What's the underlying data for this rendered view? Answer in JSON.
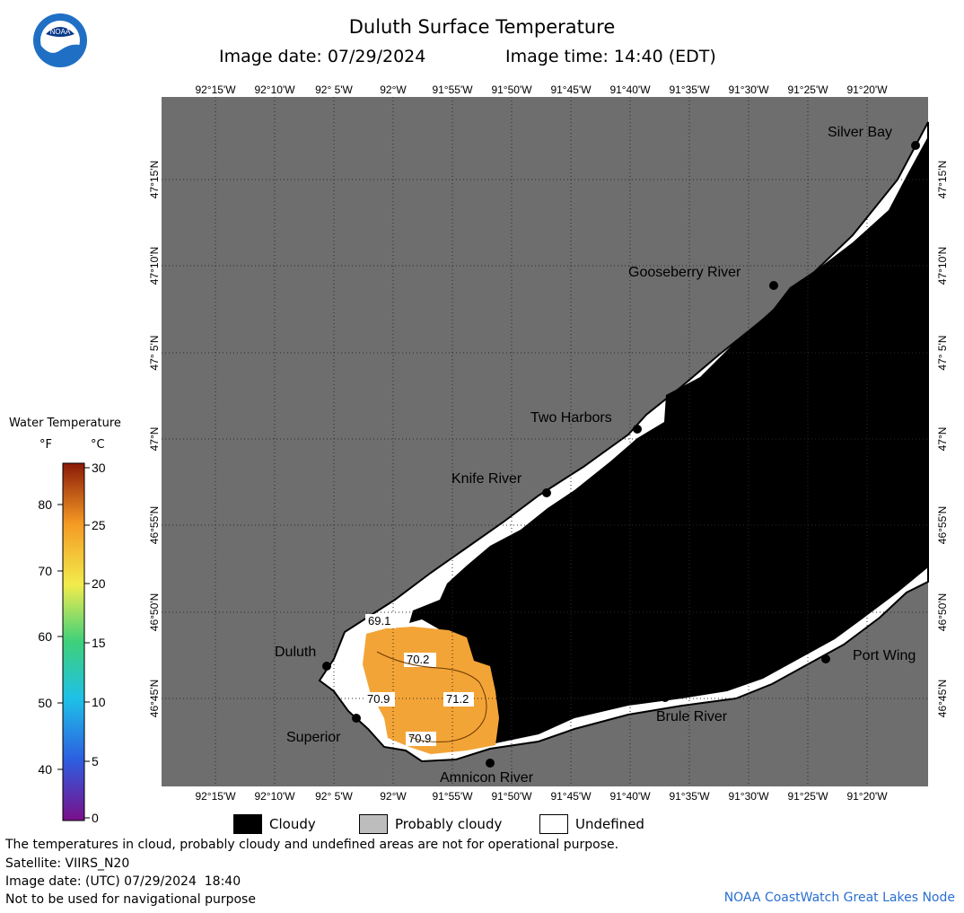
{
  "header": {
    "title": "Duluth Surface Temperature",
    "image_date": "Image date: 07/29/2024",
    "image_time": "Image time: 14:40 (EDT)"
  },
  "logo": {
    "text": "NOAA",
    "icon": "noaa-logo-icon"
  },
  "map": {
    "lon_labels": [
      "92°15'W",
      "92°10'W",
      "92° 5'W",
      "92°W",
      "91°55'W",
      "91°50'W",
      "91°45'W",
      "91°40'W",
      "91°35'W",
      "91°30'W",
      "91°25'W",
      "91°20'W"
    ],
    "lat_labels": [
      "47°15'N",
      "47°10'N",
      "47° 5'N",
      "47°N",
      "46°55'N",
      "46°50'N",
      "46°45'N"
    ],
    "places": [
      "Silver Bay",
      "Gooseberry River",
      "Two Harbors",
      "Knife River",
      "Duluth",
      "Superior",
      "Amnicon River",
      "Brule River",
      "Port Wing"
    ],
    "temperature_labels": [
      "69.1",
      "70.2",
      "70.9",
      "71.2",
      "70.9"
    ],
    "colors": {
      "land": "#6e6e6e",
      "cloudy": "#000000",
      "undefined": "#ffffff",
      "water_warm": "#f3a437"
    }
  },
  "legend": {
    "title": "Water Temperature",
    "unit_f": "°F",
    "unit_c": "°C",
    "f_ticks": [
      "80",
      "70",
      "60",
      "50",
      "40"
    ],
    "c_ticks": [
      "30",
      "25",
      "20",
      "15",
      "10",
      "5",
      "0"
    ],
    "cloudy": "Cloudy",
    "probably_cloudy": "Probably cloudy",
    "undefined": "Undefined"
  },
  "footer": {
    "note": "The temperatures in cloud, probably cloudy and undefined areas are not for operational purpose.",
    "satellite": "Satellite: VIIRS_N20",
    "utc_date": "Image date: (UTC) 07/29/2024  18:40",
    "nav": "Not to be used for navigational purpose",
    "credit": "NOAA CoastWatch Great Lakes Node"
  }
}
